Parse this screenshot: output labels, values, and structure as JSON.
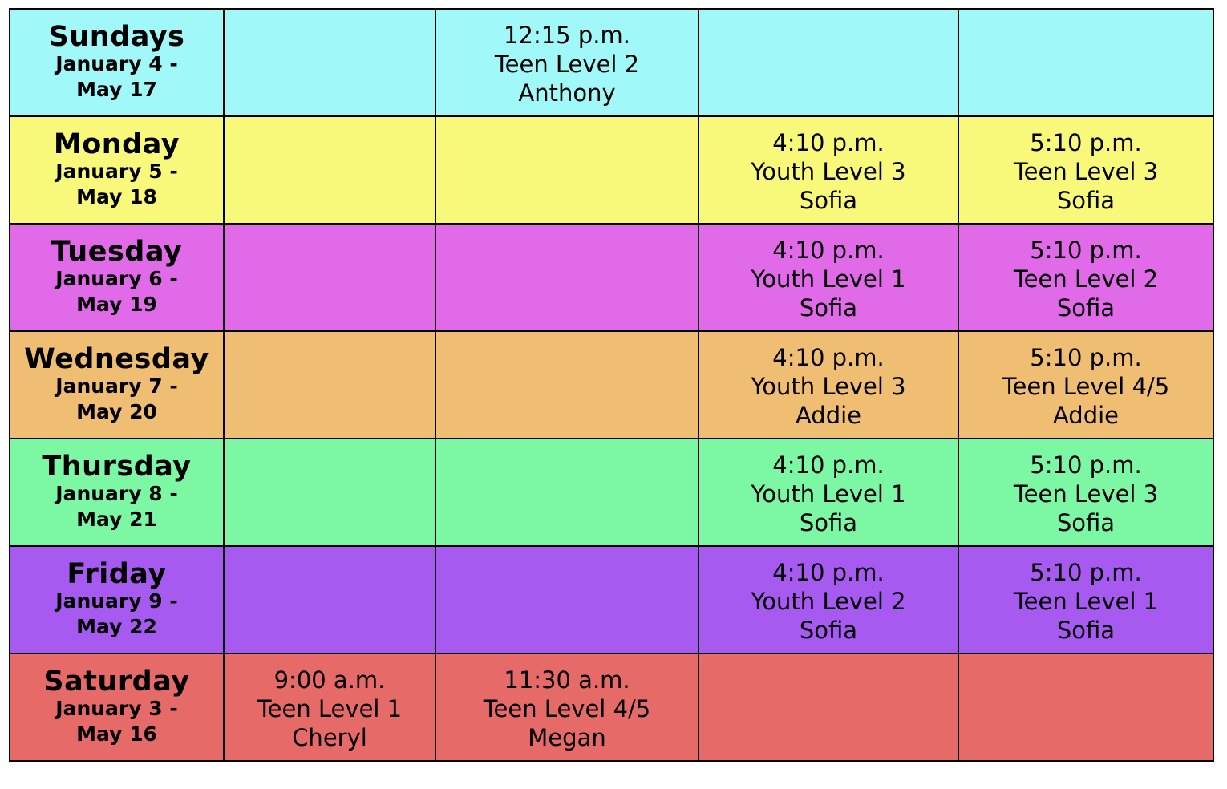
{
  "rows": [
    {
      "day": "Sundays",
      "dates": [
        "January 4 -",
        "May 17"
      ],
      "color": "#a0f8f8",
      "slots": [
        null,
        {
          "time": "12:15 p.m.",
          "level": "Teen Level 2",
          "instructor": "Anthony"
        },
        null,
        null
      ]
    },
    {
      "day": "Monday",
      "dates": [
        "January 5 -",
        "May 18"
      ],
      "color": "#f8f87a",
      "slots": [
        null,
        null,
        {
          "time": "4:10 p.m.",
          "level": "Youth Level 3",
          "instructor": "Sofia"
        },
        {
          "time": "5:10 p.m.",
          "level": "Teen Level 3",
          "instructor": "Sofia"
        }
      ]
    },
    {
      "day": "Tuesday",
      "dates": [
        "January 6 -",
        "May 19"
      ],
      "color": "#e06ae8",
      "slots": [
        null,
        null,
        {
          "time": "4:10 p.m.",
          "level": "Youth Level 1",
          "instructor": "Sofia"
        },
        {
          "time": "5:10 p.m.",
          "level": "Teen Level 2",
          "instructor": "Sofia"
        }
      ]
    },
    {
      "day": "Wednesday",
      "dates": [
        "January 7 -",
        "May 20"
      ],
      "color": "#f0be72",
      "slots": [
        null,
        null,
        {
          "time": "4:10 p.m.",
          "level": "Youth Level 3",
          "instructor": "Addie"
        },
        {
          "time": "5:10 p.m.",
          "level": "Teen Level 4/5",
          "instructor": "Addie"
        }
      ]
    },
    {
      "day": "Thursday",
      "dates": [
        "January 8 -",
        "May 21"
      ],
      "color": "#7cf8a4",
      "slots": [
        null,
        null,
        {
          "time": "4:10 p.m.",
          "level": "Youth Level 1",
          "instructor": "Sofia"
        },
        {
          "time": "5:10 p.m.",
          "level": "Teen Level 3",
          "instructor": "Sofia"
        }
      ]
    },
    {
      "day": "Friday",
      "dates": [
        "January 9 -",
        "May 22"
      ],
      "color": "#a65af0",
      "slots": [
        null,
        null,
        {
          "time": "4:10 p.m.",
          "level": "Youth Level 2",
          "instructor": "Sofia"
        },
        {
          "time": "5:10 p.m.",
          "level": "Teen Level 1",
          "instructor": "Sofia"
        }
      ]
    },
    {
      "day": "Saturday",
      "dates": [
        "January 3 -",
        "May 16"
      ],
      "color": "#e66a68",
      "slots": [
        {
          "time": "9:00 a.m.",
          "level": "Teen Level 1",
          "instructor": "Cheryl"
        },
        {
          "time": "11:30 a.m.",
          "level": "Teen Level 4/5",
          "instructor": "Megan"
        },
        null,
        null
      ]
    }
  ]
}
